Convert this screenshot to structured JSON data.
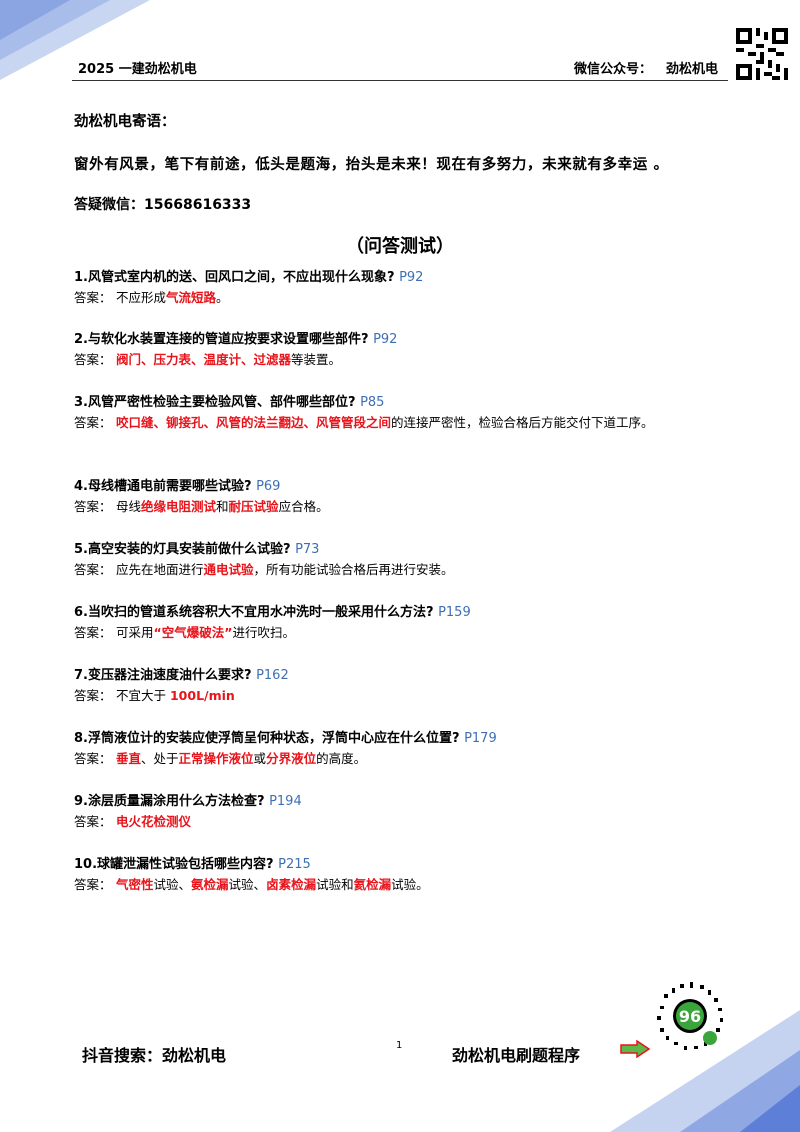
{
  "header": {
    "left_title": "2025 一建劲松机电",
    "right_label": "微信公众号：",
    "right_name": "劲松机电"
  },
  "motto": {
    "label": "劲松机电寄语：",
    "text": "窗外有风景，笔下有前途，低头是题海，抬头是未来！现在有多努力，未来就有多幸运 。"
  },
  "contact": {
    "wechat": "答疑微信：15668616333"
  },
  "section_title": "（问答测试）",
  "answer_label": "答案：",
  "questions": [
    {
      "q": "1.风管式室内机的送、回风口之间，不应出现什么现象?",
      "page": "P92",
      "a": [
        {
          "t": "不应形成"
        },
        {
          "t": "气流短路",
          "hl": true
        },
        {
          "t": "。"
        }
      ]
    },
    {
      "q": "2.与软化水装置连接的管道应按要求设置哪些部件?",
      "page": "P92",
      "a": [
        {
          "t": "阀门、压力表、温度计、过滤器",
          "hl": true
        },
        {
          "t": "等装置。"
        }
      ]
    },
    {
      "q": "3.风管严密性检验主要检验风管、部件哪些部位?",
      "page": "P85",
      "a": [
        {
          "t": "咬口缝、铆接孔、风管的法兰翻边、风管管段之间",
          "hl": true
        },
        {
          "t": "的连接严密性，检验合格后方能交付下道工序。"
        }
      ]
    },
    {
      "q": "4.母线槽通电前需要哪些试验?",
      "page": "P69",
      "a": [
        {
          "t": "母线"
        },
        {
          "t": "绝缘电阻测试",
          "hl": true
        },
        {
          "t": "和"
        },
        {
          "t": "耐压试验",
          "hl": true
        },
        {
          "t": "应合格。"
        }
      ]
    },
    {
      "q": "5.高空安装的灯具安装前做什么试验?",
      "page": "P73",
      "a": [
        {
          "t": "应先在地面进行"
        },
        {
          "t": "通电试验",
          "hl": true
        },
        {
          "t": "，所有功能试验合格后再进行安装。"
        }
      ]
    },
    {
      "q": "6.当吹扫的管道系统容积大不宜用水冲洗时一般采用什么方法?",
      "page": "P159",
      "a": [
        {
          "t": "可采用"
        },
        {
          "t": "“空气爆破法”",
          "hl": true
        },
        {
          "t": "进行吹扫。"
        }
      ]
    },
    {
      "q": "7.变压器注油速度油什么要求?",
      "page": "P162",
      "a": [
        {
          "t": "不宜大于 "
        },
        {
          "t": "100L/min",
          "hl": true
        }
      ]
    },
    {
      "q": "8.浮筒液位计的安装应使浮筒呈何种状态，浮筒中心应在什么位置?",
      "page": "P179",
      "a": [
        {
          "t": "垂直",
          "hl": true
        },
        {
          "t": "、处于"
        },
        {
          "t": "正常操作液位",
          "hl": true
        },
        {
          "t": "或"
        },
        {
          "t": "分界液位",
          "hl": true
        },
        {
          "t": "的高度。"
        }
      ]
    },
    {
      "q": "9.涂层质量漏涂用什么方法检查?",
      "page": "P194",
      "a": [
        {
          "t": "电火花检测仪",
          "hl": true
        }
      ]
    },
    {
      "q": "10.球罐泄漏性试验包括哪些内容?",
      "page": "P215",
      "a": [
        {
          "t": "气密性",
          "hl": true
        },
        {
          "t": "试验、"
        },
        {
          "t": "氨检漏",
          "hl": true
        },
        {
          "t": "试验、"
        },
        {
          "t": "卤素检漏",
          "hl": true
        },
        {
          "t": "试验和"
        },
        {
          "t": "氦检漏",
          "hl": true
        },
        {
          "t": "试验。"
        }
      ]
    }
  ],
  "footer": {
    "left": "抖音搜索：劲松机电",
    "page_number": "1",
    "right": "劲松机电刷题程序"
  },
  "colors": {
    "highlight": "#e8141b",
    "page_ref": "#3e6fb5",
    "corner_light": "#c5d3f1",
    "corner_dark": "#5d7fd8",
    "arrow_fill": "#5cb848",
    "arrow_stroke": "#e8141b"
  }
}
